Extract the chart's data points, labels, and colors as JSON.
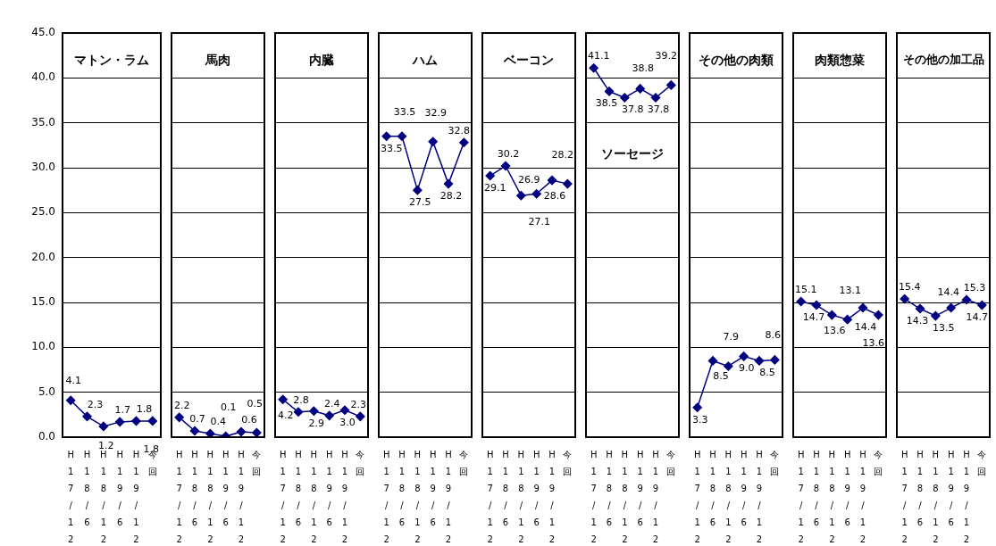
{
  "chart_data": [
    {
      "type": "line",
      "title": "マトン・ラム",
      "categories": [
        "H17/12",
        "H18/6",
        "H18/12",
        "H19/6",
        "H19/12",
        "今回"
      ],
      "values": [
        4.1,
        2.3,
        1.2,
        1.7,
        1.8,
        1.8
      ],
      "value_labels": [
        "4.1",
        "2.3",
        "1.2",
        "1.7",
        "1.8",
        "1.8"
      ],
      "color": "#000080",
      "ylim": [
        0,
        45
      ],
      "yticks": [
        {
          "value": 0,
          "label": "0.0"
        },
        {
          "value": 5,
          "label": "5.0"
        },
        {
          "value": 10,
          "label": "10.0"
        },
        {
          "value": 15,
          "label": "15.0"
        },
        {
          "value": 20,
          "label": "20.0"
        },
        {
          "value": 25,
          "label": "25.0"
        },
        {
          "value": 30,
          "label": "30.0"
        },
        {
          "value": 35,
          "label": "35.0"
        },
        {
          "value": 40,
          "label": "40.0"
        },
        {
          "value": 45,
          "label": "45.0"
        }
      ],
      "grid": "y",
      "marker": "diamond",
      "legend": false
    },
    {
      "type": "line",
      "title": "馬肉",
      "categories": [
        "H17/12",
        "H18/6",
        "H18/12",
        "H19/6",
        "H19/12",
        "今回"
      ],
      "values": [
        2.2,
        0.7,
        0.4,
        0.1,
        0.6,
        0.5
      ],
      "value_labels": [
        "2.2",
        "0.7",
        "0.4",
        "0.1",
        "0.6",
        "0.5"
      ],
      "color": "#000080",
      "ylim": [
        0,
        45
      ],
      "yticks": [
        0,
        5,
        10,
        15,
        20,
        25,
        30,
        35,
        40,
        45
      ],
      "grid": "y",
      "marker": "diamond",
      "legend": false,
      "tick_labels": "x"
    },
    {
      "type": "line",
      "title": "内臓",
      "categories": [
        "H17/12",
        "H18/6",
        "H18/12",
        "H19/6",
        "H19/12",
        "今回"
      ],
      "values": [
        4.2,
        2.8,
        2.9,
        2.4,
        3.0,
        2.3
      ],
      "value_labels": [
        "4.2",
        "2.8",
        "2.9",
        "2.4",
        "3.0",
        "2.3"
      ],
      "color": "#000080",
      "ylim": [
        0,
        45
      ],
      "yticks": [
        0,
        5,
        10,
        15,
        20,
        25,
        30,
        35,
        40,
        45
      ],
      "grid": "y",
      "marker": "diamond",
      "legend": false,
      "tick_labels": "x"
    },
    {
      "type": "line",
      "title": "ハム",
      "categories": [
        "H17/12",
        "H18/6",
        "H18/12",
        "H19/6",
        "H19/12",
        "今回"
      ],
      "values": [
        33.5,
        33.5,
        27.5,
        32.9,
        28.2,
        32.8
      ],
      "value_labels": [
        "33.5",
        "33.5",
        "27.5",
        "32.9",
        "28.2",
        "32.8"
      ],
      "color": "#000080",
      "ylim": [
        0,
        45
      ],
      "yticks": [
        0,
        5,
        10,
        15,
        20,
        25,
        30,
        35,
        40,
        45
      ],
      "grid": "y",
      "marker": "diamond",
      "legend": false,
      "tick_labels": "x"
    },
    {
      "type": "line",
      "title": "ベーコン",
      "categories": [
        "H17/12",
        "H18/6",
        "H18/12",
        "H19/6",
        "H19/12",
        "今回"
      ],
      "values": [
        29.1,
        30.2,
        26.9,
        27.1,
        28.6,
        28.2
      ],
      "value_labels": [
        "29.1",
        "30.2",
        "26.9",
        "27.1",
        "28.6",
        "28.2"
      ],
      "color": "#000080",
      "ylim": [
        0,
        45
      ],
      "yticks": [
        0,
        5,
        10,
        15,
        20,
        25,
        30,
        35,
        40,
        45
      ],
      "grid": "y",
      "marker": "diamond",
      "legend": false,
      "tick_labels": "x"
    },
    {
      "type": "line",
      "annotations": [
        "ソーセージ"
      ],
      "categories": [
        "H17/12",
        "H18/6",
        "H18/12",
        "H19/6",
        "H19/12",
        "今回"
      ],
      "values": [
        41.1,
        38.5,
        37.8,
        38.8,
        37.8,
        39.2
      ],
      "value_labels": [
        "41.1",
        "38.5",
        "37.8",
        "38.8",
        "37.8",
        "39.2"
      ],
      "color": "#000080",
      "ylim": [
        0,
        45
      ],
      "yticks": [
        0,
        5,
        10,
        15,
        20,
        25,
        30,
        35,
        40,
        45
      ],
      "grid": "y",
      "marker": "diamond",
      "legend": false,
      "tick_labels": "x"
    },
    {
      "type": "line",
      "title": "その他の肉類",
      "categories": [
        "H17/12",
        "H18/6",
        "H18/12",
        "H19/6",
        "H19/12",
        "今回"
      ],
      "values": [
        3.3,
        8.5,
        7.9,
        9.0,
        8.5,
        8.6
      ],
      "value_labels": [
        "3.3",
        "8.5",
        "7.9",
        "9.0",
        "8.5",
        "8.6"
      ],
      "color": "#000080",
      "ylim": [
        0,
        45
      ],
      "yticks": [
        0,
        5,
        10,
        15,
        20,
        25,
        30,
        35,
        40,
        45
      ],
      "grid": "y",
      "marker": "diamond",
      "legend": false,
      "tick_labels": "x"
    },
    {
      "type": "line",
      "title": "肉類惣菜",
      "categories": [
        "H17/12",
        "H18/6",
        "H18/12",
        "H19/6",
        "H19/12",
        "今回"
      ],
      "values": [
        15.1,
        14.7,
        13.6,
        13.1,
        14.4,
        13.6
      ],
      "value_labels": [
        "15.1",
        "14.7",
        "13.6",
        "13.1",
        "14.4",
        "13.6"
      ],
      "color": "#000080",
      "ylim": [
        0,
        45
      ],
      "yticks": [
        0,
        5,
        10,
        15,
        20,
        25,
        30,
        35,
        40,
        45
      ],
      "grid": "y",
      "marker": "diamond",
      "legend": false,
      "tick_labels": "x"
    },
    {
      "type": "line",
      "title": "その他の加工品",
      "categories": [
        "H17/12",
        "H18/6",
        "H18/12",
        "H19/6",
        "H19/12",
        "今回"
      ],
      "values": [
        15.4,
        14.3,
        13.5,
        14.4,
        15.3,
        14.7
      ],
      "value_labels": [
        "15.4",
        "14.3",
        "13.5",
        "14.4",
        "15.3",
        "14.7"
      ],
      "color": "#000080",
      "ylim": [
        0,
        45
      ],
      "yticks": [
        0,
        5,
        10,
        15,
        20,
        25,
        30,
        35,
        40,
        45
      ],
      "grid": "y",
      "marker": "diamond",
      "legend": false,
      "tick_labels": "x"
    }
  ]
}
